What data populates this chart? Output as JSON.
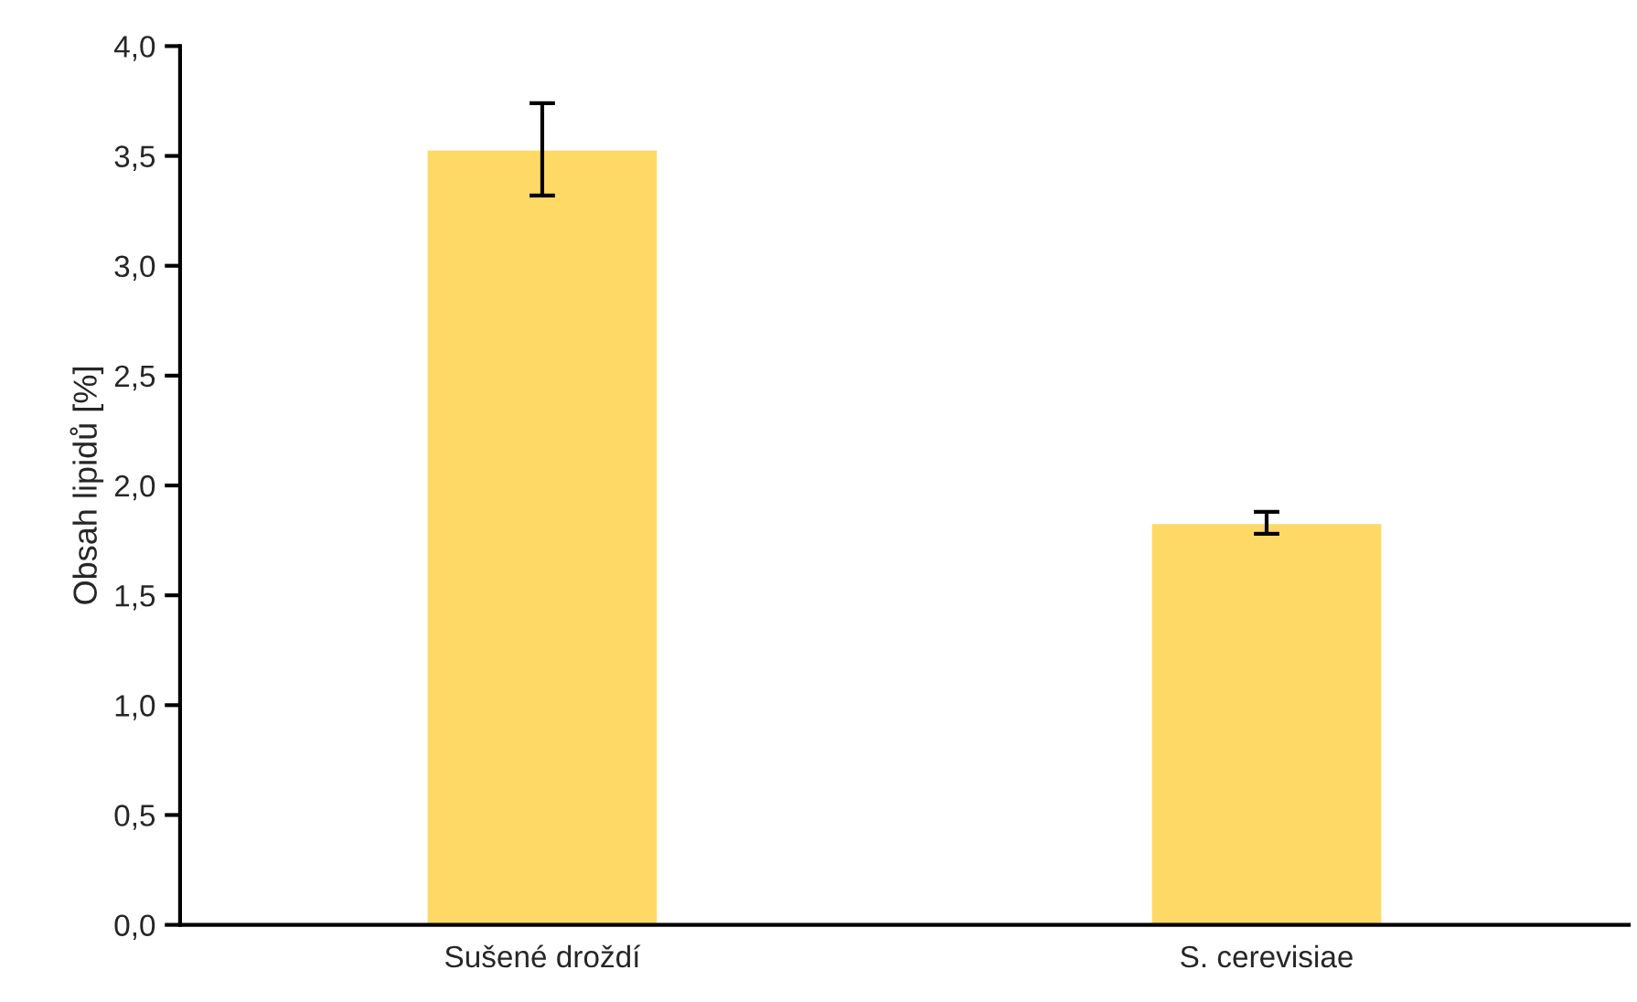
{
  "chart_data": {
    "type": "bar",
    "ylabel": "Obsah lipidů [%]",
    "categories": [
      "Sušené droždí",
      "S. cerevisiae"
    ],
    "values": [
      3.53,
      1.83
    ],
    "errors": [
      0.21,
      0.05
    ],
    "color": "#ffd966",
    "ylim": [
      0,
      4
    ],
    "yticks": [
      {
        "value": 0,
        "label": "0,0"
      },
      {
        "value": 0.5,
        "label": "0,5"
      },
      {
        "value": 1,
        "label": "1,0"
      },
      {
        "value": 1.5,
        "label": "1,5"
      },
      {
        "value": 2,
        "label": "2,0"
      },
      {
        "value": 2.5,
        "label": "2,5"
      },
      {
        "value": 3,
        "label": "3,0"
      },
      {
        "value": 3.5,
        "label": "3,5"
      },
      {
        "value": 4,
        "label": "4,0"
      }
    ],
    "grid": false,
    "legend": false
  }
}
